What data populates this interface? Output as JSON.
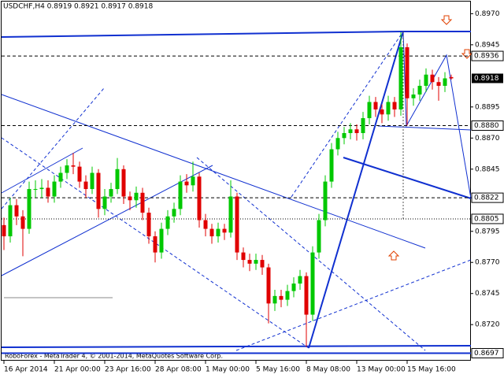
{
  "chart_data": {
    "type": "candlestick",
    "title": "USDCHF,H4  0.8919 0.8921 0.8917 0.8918",
    "footer": "RoboForex - MetaTrader 4, © 2001-2014, MetaQuotes Software Corp.",
    "categories": [
      "16 Apr 2014",
      null,
      null,
      null,
      null,
      null,
      null,
      null,
      "21 Apr 00:00",
      null,
      null,
      null,
      null,
      null,
      null,
      null,
      "23 Apr 16:00",
      null,
      null,
      null,
      null,
      null,
      null,
      null,
      "28 Apr 08:00",
      null,
      null,
      null,
      null,
      null,
      null,
      null,
      "1 May 00:00",
      null,
      null,
      null,
      null,
      null,
      null,
      null,
      "5 May 16:00",
      null,
      null,
      null,
      null,
      null,
      null,
      null,
      "8 May 08:00",
      null,
      null,
      null,
      null,
      null,
      null,
      null,
      "13 May 00:00",
      null,
      null,
      null,
      null,
      null,
      null,
      null,
      "15 May 16:00",
      null,
      null,
      null,
      null,
      null,
      null,
      null
    ],
    "open": [
      0.88,
      0.8791,
      0.8816,
      0.8807,
      0.8797,
      0.8829,
      0.8829,
      0.883,
      0.8823,
      0.8835,
      0.8842,
      0.8848,
      0.8847,
      0.8835,
      0.8829,
      0.8842,
      0.8813,
      0.8823,
      0.8829,
      0.8845,
      0.8823,
      0.882,
      0.8826,
      0.881,
      0.8791,
      0.8778,
      0.8797,
      0.8807,
      0.8813,
      0.8835,
      0.8832,
      0.8839,
      0.8804,
      0.8797,
      0.8791,
      0.8797,
      0.8794,
      0.8823,
      0.8778,
      0.8772,
      0.8769,
      0.8772,
      0.8766,
      0.8737,
      0.8743,
      0.874,
      0.8747,
      0.8753,
      0.8759,
      0.8728,
      0.8778,
      0.8804,
      0.8835,
      0.8861,
      0.887,
      0.8874,
      0.8877,
      0.8874,
      0.8886,
      0.8899,
      0.8893,
      0.8889,
      0.8899,
      0.8893,
      0.8943,
      0.8902,
      0.8905,
      0.8912,
      0.8921,
      0.8915,
      0.8912,
      0.8919
    ],
    "high": [
      0.8806,
      0.8822,
      0.8821,
      0.8812,
      0.8835,
      0.8836,
      0.8837,
      0.8836,
      0.884,
      0.8847,
      0.8853,
      0.8858,
      0.8851,
      0.884,
      0.8847,
      0.8845,
      0.8829,
      0.8834,
      0.8854,
      0.8848,
      0.8827,
      0.8831,
      0.883,
      0.8814,
      0.8795,
      0.8802,
      0.8812,
      0.8818,
      0.884,
      0.8841,
      0.8851,
      0.8842,
      0.8809,
      0.8801,
      0.8802,
      0.8801,
      0.8836,
      0.8826,
      0.8782,
      0.8777,
      0.8777,
      0.8776,
      0.8769,
      0.8748,
      0.8748,
      0.8752,
      0.8758,
      0.8764,
      0.8762,
      0.8783,
      0.8809,
      0.884,
      0.8866,
      0.8875,
      0.8879,
      0.8882,
      0.8881,
      0.8891,
      0.8904,
      0.8903,
      0.8897,
      0.8904,
      0.8903,
      0.8955,
      0.8946,
      0.891,
      0.8917,
      0.8926,
      0.8925,
      0.8919,
      0.8923,
      0.8921
    ],
    "low": [
      0.878,
      0.8786,
      0.88,
      0.8775,
      0.8793,
      0.8822,
      0.8822,
      0.8818,
      0.8818,
      0.883,
      0.8837,
      0.8841,
      0.883,
      0.8822,
      0.8825,
      0.8806,
      0.8808,
      0.8818,
      0.8825,
      0.8817,
      0.8812,
      0.8814,
      0.8804,
      0.8785,
      0.877,
      0.8773,
      0.8792,
      0.8802,
      0.8808,
      0.8826,
      0.8827,
      0.8798,
      0.8791,
      0.8785,
      0.8786,
      0.8788,
      0.879,
      0.8772,
      0.8766,
      0.8763,
      0.8764,
      0.876,
      0.8721,
      0.8731,
      0.8734,
      0.8735,
      0.8742,
      0.8748,
      0.8702,
      0.8723,
      0.8773,
      0.8799,
      0.883,
      0.8856,
      0.8865,
      0.8869,
      0.8868,
      0.8869,
      0.8881,
      0.8887,
      0.8882,
      0.8884,
      0.8887,
      0.8888,
      0.888,
      0.8896,
      0.89,
      0.8907,
      0.8909,
      0.89,
      0.8907,
      0.8917
    ],
    "close": [
      0.8791,
      0.8816,
      0.8807,
      0.8797,
      0.8829,
      0.8829,
      0.883,
      0.8823,
      0.8835,
      0.8842,
      0.8848,
      0.8847,
      0.8835,
      0.8829,
      0.8842,
      0.8813,
      0.8823,
      0.8829,
      0.8845,
      0.8823,
      0.882,
      0.8826,
      0.881,
      0.8791,
      0.8778,
      0.8797,
      0.8807,
      0.8813,
      0.8835,
      0.8832,
      0.8839,
      0.8804,
      0.8797,
      0.8791,
      0.8797,
      0.8794,
      0.8823,
      0.8778,
      0.8772,
      0.8769,
      0.8772,
      0.8766,
      0.8737,
      0.8743,
      0.874,
      0.8747,
      0.8753,
      0.8759,
      0.8728,
      0.8778,
      0.8804,
      0.8835,
      0.8861,
      0.887,
      0.8874,
      0.8877,
      0.8874,
      0.8886,
      0.8899,
      0.8893,
      0.8889,
      0.8899,
      0.8893,
      0.8943,
      0.8902,
      0.8905,
      0.8912,
      0.8921,
      0.8915,
      0.8912,
      0.8918,
      0.8918
    ],
    "up_color": "#00c800",
    "down_color": "#e00000",
    "ylim": [
      0.8691,
      0.8981
    ],
    "yticks": [
      {
        "value": 0.897,
        "label": "0.8970"
      },
      0.8945,
      0.8895,
      {
        "value": 0.887,
        "label": "0.8870"
      },
      0.8845,
      0.8795,
      {
        "value": 0.877,
        "label": "0.8770"
      },
      0.8745,
      {
        "value": 0.872,
        "label": "0.8720"
      }
    ],
    "levels": [
      0.8936,
      {
        "value": 0.888,
        "label": "0.8880"
      },
      0.8822,
      0.8805,
      0.8697
    ],
    "level_styles": [
      "dashed",
      "dashed",
      "dashed",
      "dotted",
      "solid"
    ],
    "last_price": 0.8918
  }
}
